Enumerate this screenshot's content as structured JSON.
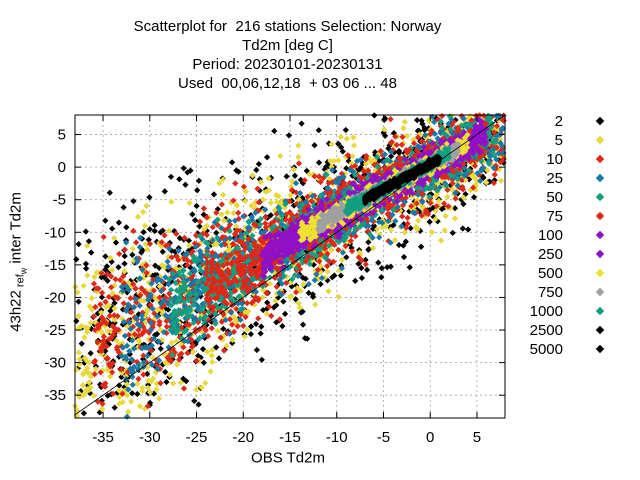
{
  "chart_data": {
    "type": "scatter",
    "title_lines": [
      "Scatterplot for  216 stations Selection: Norway",
      "Td2m [deg C]",
      "Period: 20230101-20230131",
      "Used  00,06,12,18  + 03 06 ... 48"
    ],
    "xlabel": "OBS Td2m",
    "ylabel_main": "43h22",
    "ylabel_sub1": "ref",
    "ylabel_sub2": "w",
    "ylabel_tail": "inter Td2m",
    "xlim": [
      -38,
      8
    ],
    "ylim": [
      -38.5,
      8
    ],
    "xticks": [
      -35,
      -30,
      -25,
      -20,
      -15,
      -10,
      -5,
      0,
      5
    ],
    "yticks": [
      5,
      0,
      -5,
      -10,
      -15,
      -20,
      -25,
      -30,
      -35
    ],
    "grid": true,
    "legend_position": "right, outside plot",
    "reference_line": "y = x",
    "series": [
      {
        "name": "2",
        "color": "#000000",
        "band": [
          -38,
          8,
          9.0
        ]
      },
      {
        "name": "5",
        "color": "#e8d838",
        "band": [
          -38,
          8,
          7.5
        ]
      },
      {
        "name": "10",
        "color": "#e02818",
        "band": [
          -36,
          8,
          6.0
        ]
      },
      {
        "name": "25",
        "color": "#1878a8",
        "band": [
          -33,
          8,
          4.8
        ]
      },
      {
        "name": "50",
        "color": "#10a080",
        "band": [
          -28,
          7,
          3.6
        ]
      },
      {
        "name": "75",
        "color": "#e02818",
        "band": [
          -24,
          6,
          2.6
        ]
      },
      {
        "name": "100",
        "color": "#9010c8",
        "band": [
          -18,
          6,
          2.0
        ]
      },
      {
        "name": "250",
        "color": "#9010c8",
        "band": [
          -16,
          5,
          1.6
        ]
      },
      {
        "name": "500",
        "color": "#f0e030",
        "band": [
          -14,
          4,
          1.2
        ]
      },
      {
        "name": "750",
        "color": "#a0a0a0",
        "band": [
          -12,
          3,
          0.9
        ]
      },
      {
        "name": "1000",
        "color": "#10a080",
        "band": [
          -9,
          2,
          0.7
        ]
      },
      {
        "name": "2500",
        "color": "#000000",
        "band": [
          -7,
          1,
          0.5
        ]
      },
      {
        "name": "5000",
        "color": "#000000",
        "band": [
          -5,
          0,
          0.3
        ]
      }
    ]
  }
}
